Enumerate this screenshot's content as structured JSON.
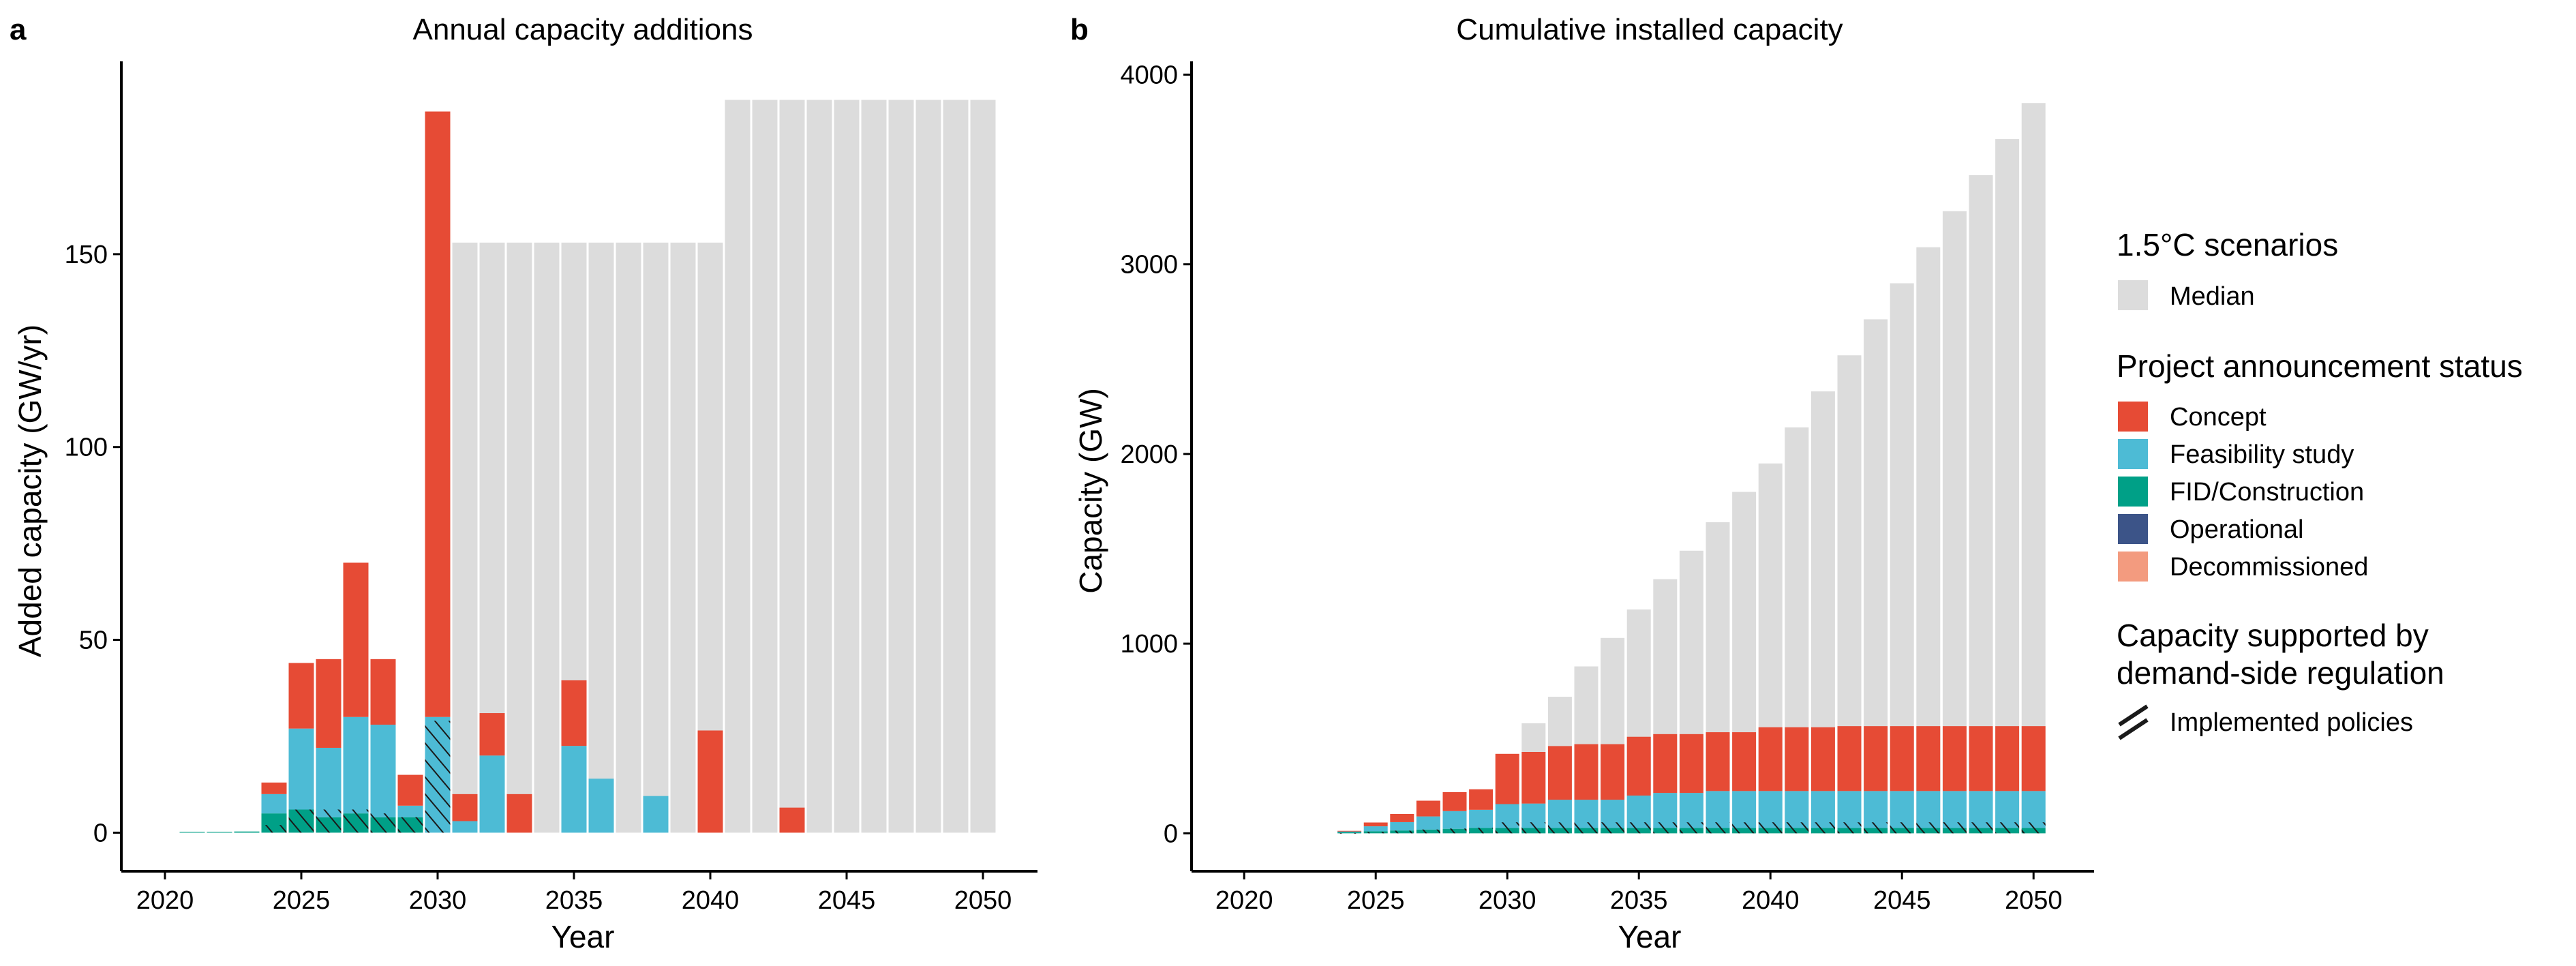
{
  "panels": {
    "a": {
      "letter": "a",
      "title": "Annual capacity additions"
    },
    "b": {
      "letter": "b",
      "title": "Cumulative installed capacity"
    }
  },
  "legend": {
    "scenario_title": "1.5°C scenarios",
    "scenario_items": [
      {
        "label": "Median",
        "color": "#dcdcdc"
      }
    ],
    "status_title": "Project announcement status",
    "status_items": [
      {
        "key": "concept",
        "label": "Concept",
        "color": "#e64b35"
      },
      {
        "key": "feasibility",
        "label": "Feasibility study",
        "color": "#4dbbd5"
      },
      {
        "key": "fid",
        "label": "FID/Construction",
        "color": "#00a087"
      },
      {
        "key": "operational",
        "label": "Operational",
        "color": "#3c5488"
      },
      {
        "key": "decommissioned",
        "label": "Decommissioned",
        "color": "#f39b7f"
      }
    ],
    "policy_title_line1": "Capacity supported by",
    "policy_title_line2": "demand-side regulation",
    "policy_items": [
      {
        "label": "Implemented policies",
        "icon": "hatch-icon"
      }
    ]
  },
  "chart_data": [
    {
      "id": "a",
      "type": "bar",
      "title": "Annual capacity additions",
      "xlabel": "Year",
      "ylabel": "Added capacity (GW/yr)",
      "xlim": [
        2018.4,
        2052
      ],
      "ylim": [
        -10,
        200
      ],
      "x_ticks": [
        2020,
        2025,
        2030,
        2035,
        2040,
        2045,
        2050
      ],
      "y_ticks": [
        0,
        50,
        100,
        150
      ],
      "grid": false,
      "stacked": true,
      "x": [
        2021,
        2022,
        2023,
        2024,
        2025,
        2026,
        2027,
        2028,
        2029,
        2030,
        2031,
        2032,
        2033,
        2034,
        2035,
        2036,
        2037,
        2038,
        2039,
        2040,
        2041,
        2042,
        2043,
        2044,
        2045,
        2046,
        2047,
        2048,
        2049,
        2050
      ],
      "median": [
        null,
        null,
        null,
        null,
        null,
        null,
        null,
        null,
        null,
        null,
        153,
        153,
        153,
        153,
        153,
        153,
        153,
        153,
        153,
        153,
        190,
        190,
        190,
        190,
        190,
        190,
        190,
        190,
        190,
        190
      ],
      "series": [
        {
          "name": "FID/Construction",
          "key": "fid",
          "values": [
            0.2,
            0.2,
            0.3,
            5,
            6,
            4,
            5,
            4,
            4,
            0,
            0,
            0,
            0,
            0,
            0,
            0,
            0,
            0,
            0,
            0,
            0,
            0,
            0,
            0,
            0,
            0,
            0,
            0,
            0,
            0
          ]
        },
        {
          "name": "Feasibility study",
          "key": "feasibility",
          "values": [
            0,
            0,
            0,
            5,
            21,
            18,
            25,
            24,
            3,
            30,
            3,
            20,
            0,
            0,
            22.5,
            14,
            0,
            9.5,
            0,
            0,
            0,
            0,
            0,
            0,
            0,
            0,
            0,
            0,
            0,
            0
          ]
        },
        {
          "name": "Concept",
          "key": "concept",
          "values": [
            0,
            0,
            0,
            3,
            17,
            23,
            40,
            17,
            8,
            157,
            7,
            11,
            10,
            0,
            17,
            0,
            0,
            0,
            0,
            26.5,
            0,
            0,
            6.5,
            0,
            0,
            0,
            0,
            0,
            0,
            0
          ]
        }
      ],
      "policy_supported": [
        0,
        0,
        0,
        2,
        6,
        6,
        6,
        5,
        4,
        29,
        0,
        0,
        0,
        0,
        0,
        0,
        0,
        0,
        0,
        0,
        0,
        0,
        0,
        0,
        0,
        0,
        0,
        0,
        0,
        0
      ]
    },
    {
      "id": "b",
      "type": "bar",
      "title": "Cumulative installed capacity",
      "xlabel": "Year",
      "ylabel": "Capacity (GW)",
      "xlim": [
        2018,
        2052.3
      ],
      "ylim": [
        -200,
        4070
      ],
      "x_ticks": [
        2020,
        2025,
        2030,
        2035,
        2040,
        2045,
        2050
      ],
      "y_ticks": [
        0,
        1000,
        2000,
        3000,
        4000
      ],
      "grid": false,
      "stacked": true,
      "x": [
        2024,
        2025,
        2026,
        2027,
        2028,
        2029,
        2030,
        2031,
        2032,
        2033,
        2034,
        2035,
        2036,
        2037,
        2038,
        2039,
        2040,
        2041,
        2042,
        2043,
        2044,
        2045,
        2046,
        2047,
        2048,
        2049,
        2050
      ],
      "median": [
        null,
        null,
        null,
        null,
        null,
        null,
        null,
        580,
        720,
        880,
        1030,
        1180,
        1340,
        1490,
        1640,
        1800,
        1950,
        2140,
        2330,
        2520,
        2710,
        2900,
        3090,
        3280,
        3470,
        3660,
        3850
      ],
      "series": [
        {
          "name": "FID/Construction",
          "key": "fid",
          "values": [
            5,
            11,
            15,
            20,
            24,
            28,
            28,
            28,
            28,
            28,
            28,
            28,
            28,
            28,
            28,
            28,
            28,
            28,
            28,
            28,
            28,
            28,
            28,
            28,
            28,
            28,
            28
          ]
        },
        {
          "name": "Feasibility study",
          "key": "feasibility",
          "values": [
            5,
            26,
            44,
            69,
            93,
            96,
            126,
            129,
            149,
            149,
            149,
            171,
            185,
            185,
            195,
            195,
            195,
            195,
            195,
            195,
            195,
            195,
            195,
            195,
            195,
            195,
            195
          ]
        },
        {
          "name": "Concept",
          "key": "concept",
          "values": [
            3,
            20,
            43,
            83,
            100,
            108,
            265,
            272,
            283,
            293,
            293,
            310,
            310,
            310,
            310,
            310,
            336,
            336,
            336,
            342,
            342,
            342,
            342,
            342,
            342,
            342,
            342
          ]
        }
      ],
      "policy_supported": [
        2,
        8,
        14,
        20,
        25,
        29,
        58,
        58,
        58,
        58,
        58,
        58,
        58,
        58,
        58,
        58,
        58,
        58,
        58,
        58,
        58,
        58,
        58,
        58,
        58,
        58,
        58
      ]
    }
  ]
}
